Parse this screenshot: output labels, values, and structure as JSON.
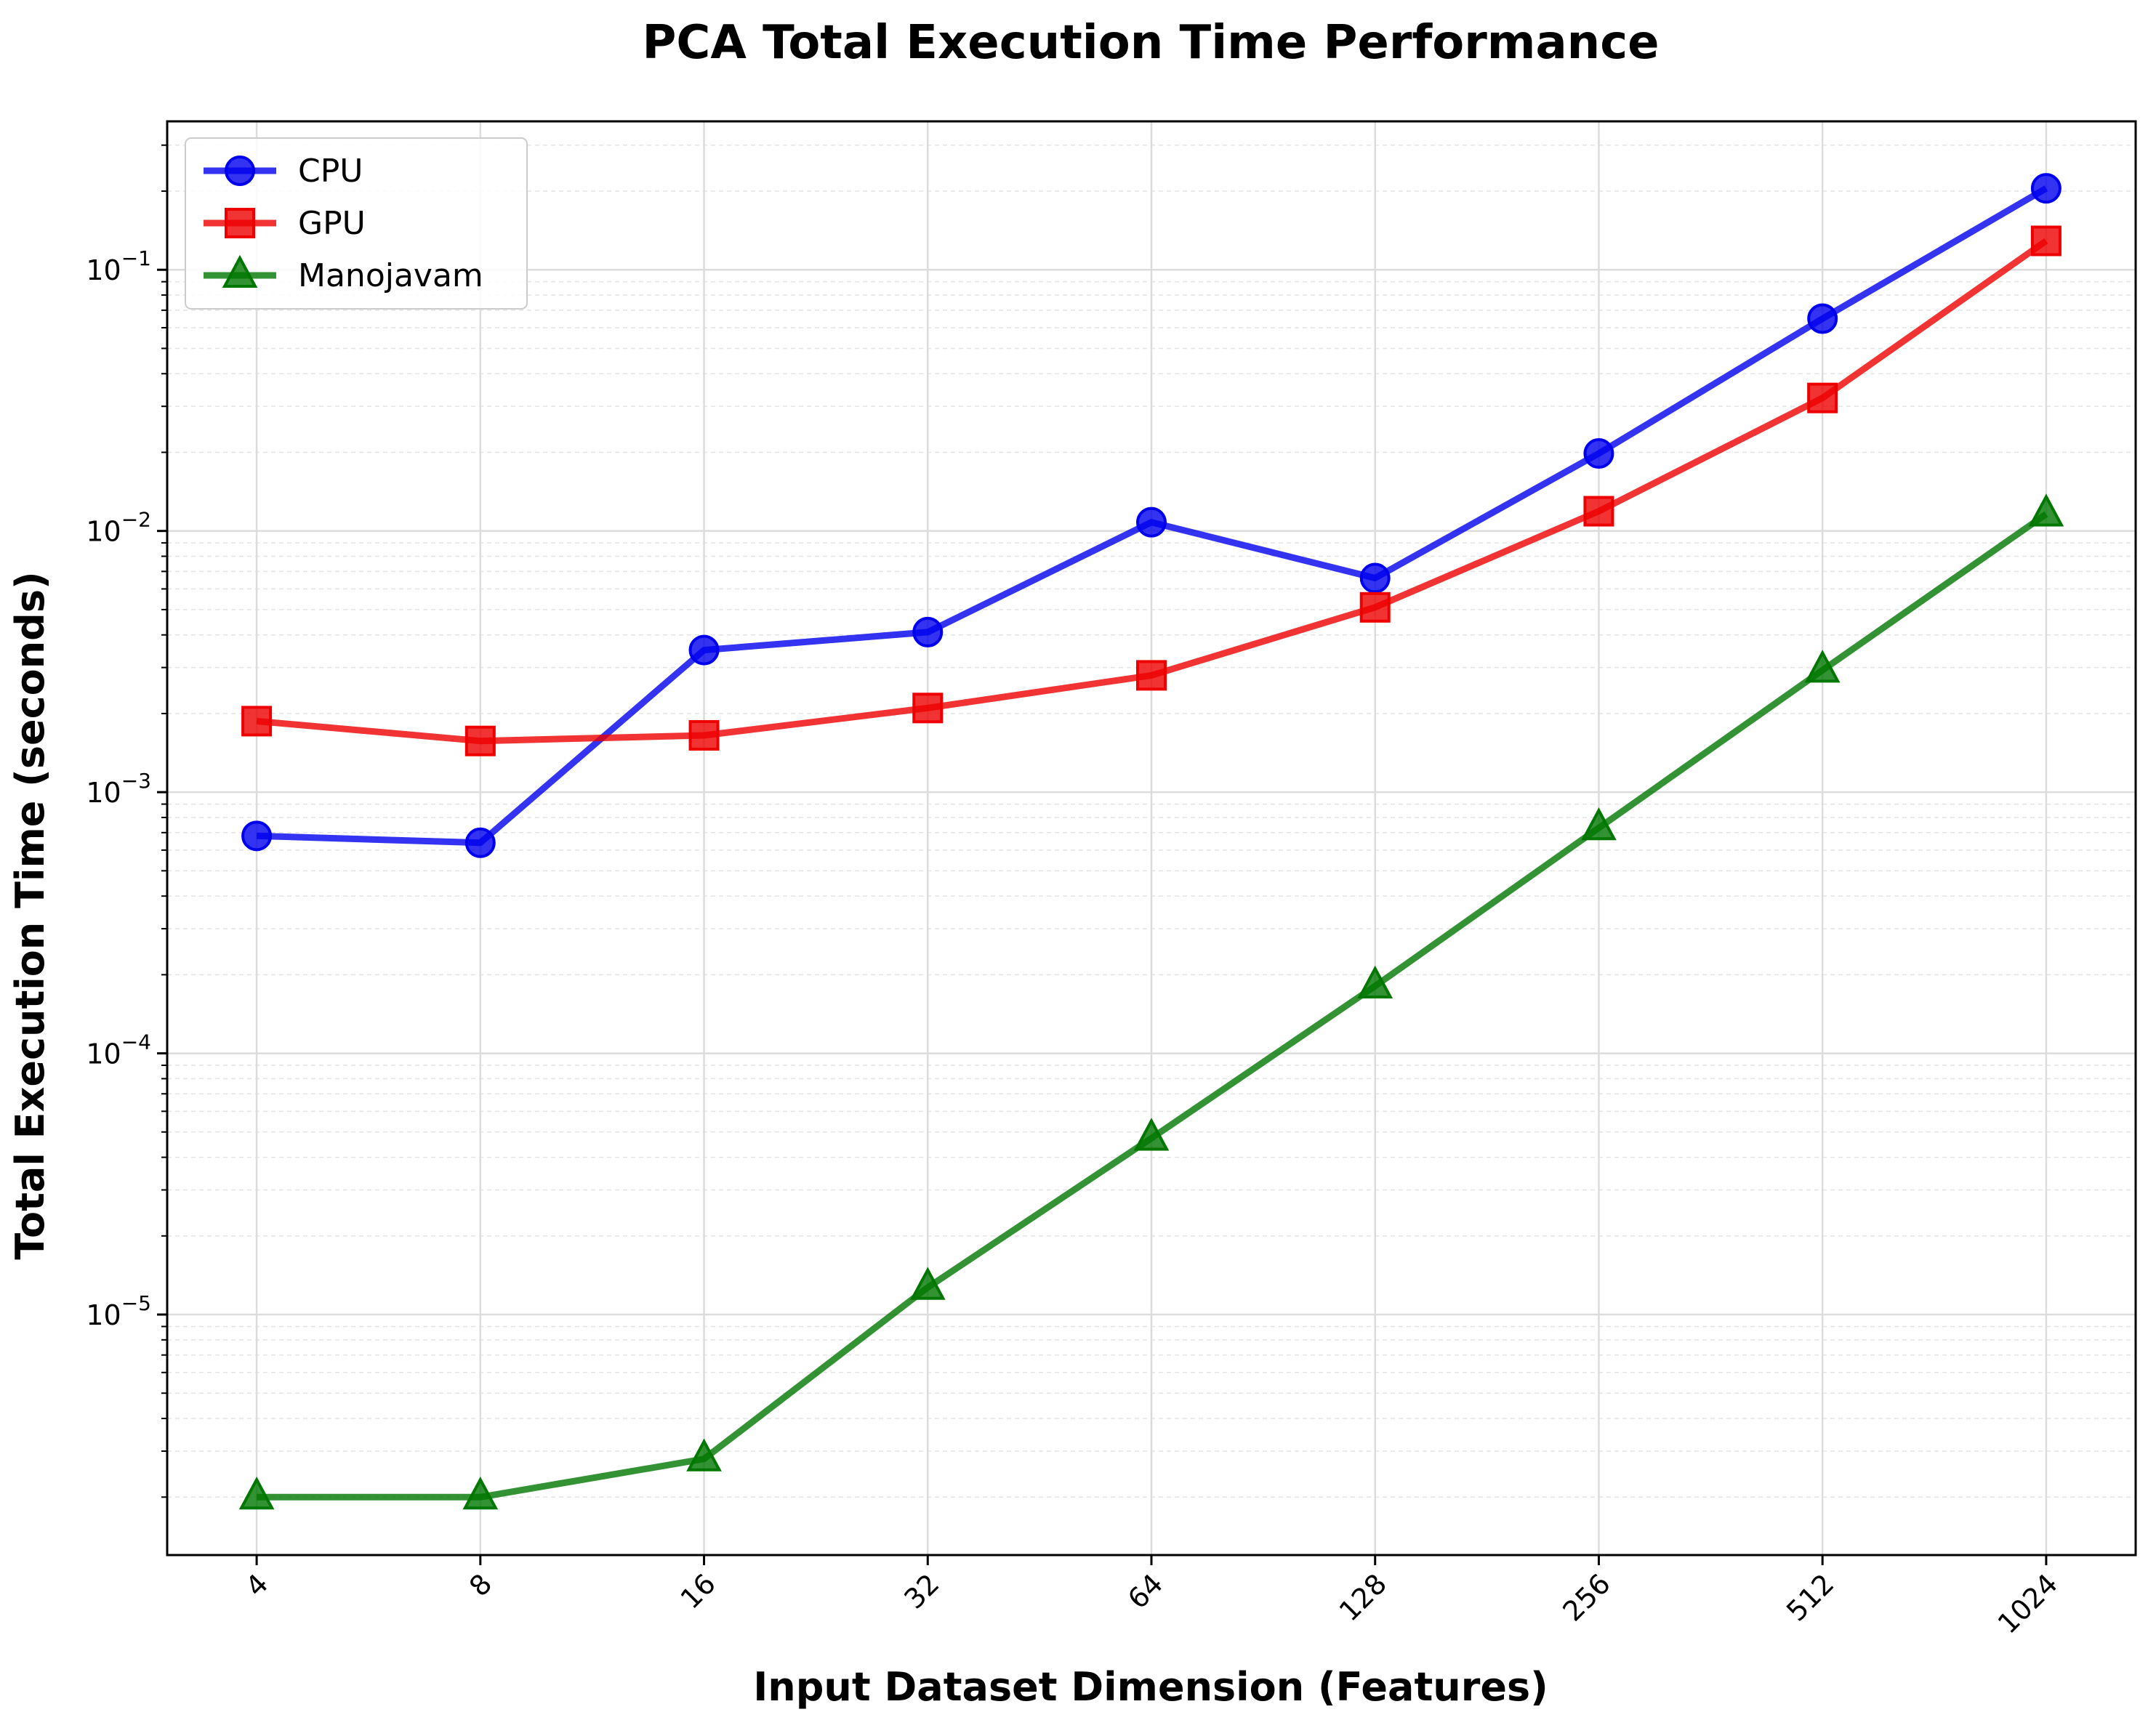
{
  "chart_data": {
    "type": "line",
    "title": "PCA Total Execution Time Performance",
    "xlabel": "Input Dataset Dimension (Features)",
    "ylabel": "Total Execution Time (seconds)",
    "x_scale": "log2",
    "y_scale": "log10",
    "x": [
      4,
      8,
      16,
      32,
      64,
      128,
      256,
      512,
      1024
    ],
    "x_tick_labels": [
      "4",
      "8",
      "16",
      "32",
      "64",
      "128",
      "256",
      "512",
      "1024"
    ],
    "y_ticks": [
      {
        "base": "10",
        "exp": "−5",
        "value": 1e-05
      },
      {
        "base": "10",
        "exp": "−4",
        "value": 0.0001
      },
      {
        "base": "10",
        "exp": "−3",
        "value": 0.001
      },
      {
        "base": "10",
        "exp": "−2",
        "value": 0.01
      },
      {
        "base": "10",
        "exp": "−1",
        "value": 0.1
      }
    ],
    "ylim": [
      1.2e-06,
      0.37
    ],
    "grid": true,
    "legend_position": "upper-left",
    "series": [
      {
        "name": "CPU",
        "color": "#0000ee",
        "marker": "circle",
        "values": [
          0.00068,
          0.00064,
          0.0035,
          0.0041,
          0.0108,
          0.0066,
          0.0198,
          0.065,
          0.205
        ]
      },
      {
        "name": "GPU",
        "color": "#ee0000",
        "marker": "square",
        "values": [
          0.00187,
          0.00157,
          0.00165,
          0.0021,
          0.0028,
          0.0051,
          0.0119,
          0.0323,
          0.129
        ]
      },
      {
        "name": "Manojavam",
        "color": "#007700",
        "marker": "triangle",
        "values": [
          2e-06,
          2e-06,
          2.8e-06,
          1.27e-05,
          4.73e-05,
          0.000181,
          0.00073,
          0.00293,
          0.0116
        ]
      }
    ]
  }
}
